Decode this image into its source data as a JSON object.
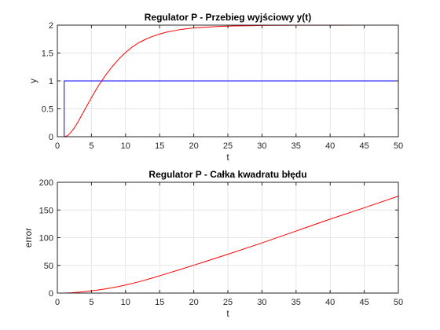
{
  "chart_data": [
    {
      "type": "line",
      "title": "Regulator P - Przebieg wyjściowy y(t)",
      "xlabel": "t",
      "ylabel": "y",
      "xlim": [
        0,
        50
      ],
      "ylim": [
        0,
        2
      ],
      "xticks": [
        0,
        5,
        10,
        15,
        20,
        25,
        30,
        35,
        40,
        45,
        50
      ],
      "yticks": [
        0,
        0.5,
        1,
        1.5,
        2
      ],
      "grid": true,
      "series": [
        {
          "color": "#0000ff",
          "x": [
            0,
            1,
            1,
            50
          ],
          "y": [
            0,
            0,
            1,
            1
          ]
        },
        {
          "color": "#ff0000",
          "x": [
            0,
            1,
            1.5,
            2,
            2.5,
            3,
            3.5,
            4,
            5,
            6,
            7,
            8,
            9,
            10,
            11,
            12,
            13,
            14,
            15,
            16,
            18,
            20,
            22,
            24,
            26,
            28,
            30,
            35,
            40,
            45,
            50
          ],
          "y": [
            0,
            0,
            0.02,
            0.08,
            0.16,
            0.26,
            0.37,
            0.48,
            0.7,
            0.91,
            1.09,
            1.25,
            1.39,
            1.51,
            1.61,
            1.69,
            1.75,
            1.8,
            1.84,
            1.875,
            1.92,
            1.95,
            1.965,
            1.978,
            1.985,
            1.99,
            1.994,
            1.998,
            1.999,
            2.0,
            2.0
          ]
        }
      ]
    },
    {
      "type": "line",
      "title": "Regulator P - Całka kwadratu błędu",
      "xlabel": "t",
      "ylabel": "error",
      "xlim": [
        0,
        50
      ],
      "ylim": [
        0,
        200
      ],
      "xticks": [
        0,
        5,
        10,
        15,
        20,
        25,
        30,
        35,
        40,
        45,
        50
      ],
      "yticks": [
        0,
        50,
        100,
        150,
        200
      ],
      "grid": true,
      "series": [
        {
          "color": "#ff0000",
          "x": [
            0,
            1,
            2,
            3,
            4,
            5,
            6,
            7,
            8,
            9,
            10,
            12,
            14,
            16,
            18,
            20,
            25,
            30,
            35,
            40,
            45,
            50
          ],
          "y": [
            0,
            0,
            0.5,
            1.4,
            2.6,
            4.0,
            5.6,
            7.5,
            9.6,
            11.9,
            14.5,
            20.5,
            27.5,
            35.0,
            42.5,
            50.3,
            70.0,
            90.5,
            112.0,
            133.5,
            154.0,
            175.0
          ]
        }
      ]
    }
  ]
}
